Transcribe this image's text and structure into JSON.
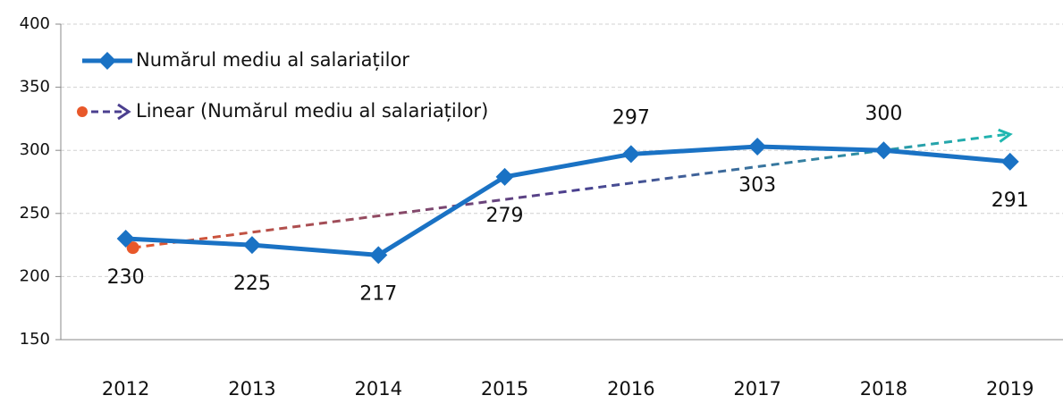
{
  "chart_data": {
    "type": "line",
    "categories": [
      "2012",
      "2013",
      "2014",
      "2015",
      "2016",
      "2017",
      "2018",
      "2019"
    ],
    "series": [
      {
        "name": "Numărul mediu al salariaților",
        "color": "#1a72c4",
        "values": [
          230,
          225,
          217,
          279,
          297,
          303,
          300,
          291
        ]
      }
    ],
    "trendline": {
      "name": "Linear (Numărul mediu al salariaților)",
      "type": "linear",
      "colors": [
        "#e8582a",
        "#4b3f8f",
        "#1fb7b0"
      ]
    },
    "ylim": [
      150,
      400
    ],
    "yticks": [
      150,
      200,
      250,
      300,
      350,
      400
    ],
    "grid": true,
    "legend": "top-left"
  }
}
